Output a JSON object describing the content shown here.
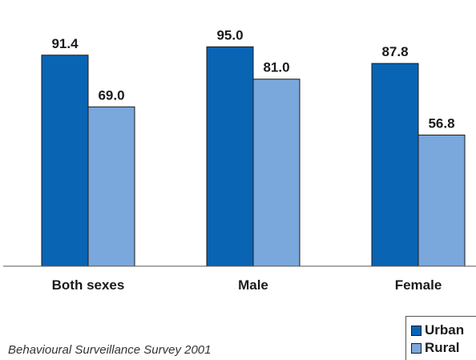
{
  "chart_data": {
    "type": "bar",
    "categories": [
      "Both sexes",
      "Male",
      "Female"
    ],
    "series": [
      {
        "name": "Urban",
        "values": [
          91.4,
          95.0,
          87.8
        ],
        "color": "#0a64b4"
      },
      {
        "name": "Rural",
        "values": [
          69.0,
          81.0,
          56.8
        ],
        "color": "#7aa7dc"
      }
    ],
    "value_labels": {
      "Urban": [
        "91.4",
        "95.0",
        "87.8"
      ],
      "Rural": [
        "69.0",
        "81.0",
        "56.8"
      ]
    },
    "title": "",
    "xlabel": "",
    "ylabel": "",
    "ylim": [
      0,
      100
    ],
    "grid": false,
    "legend_position": "bottom-right"
  },
  "source": "Behavioural Surveillance Survey 2001"
}
